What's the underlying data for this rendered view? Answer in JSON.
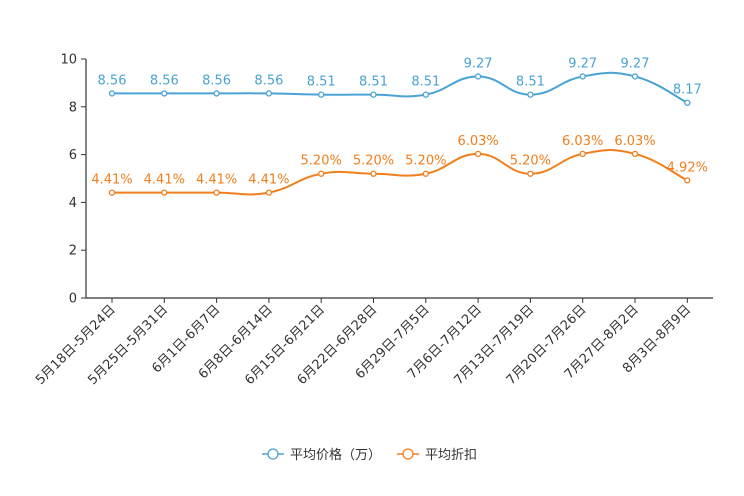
{
  "chart_data": {
    "type": "line",
    "title": "",
    "xlabel": "",
    "ylabel": "",
    "ylim": [
      0,
      10
    ],
    "yticks": [
      0,
      2,
      4,
      6,
      8,
      10
    ],
    "categories": [
      "5月18日-5月24日",
      "5月25日-5月31日",
      "6月1日-6月7日",
      "6月8日-6月14日",
      "6月15日-6月21日",
      "6月22日-6月28日",
      "6月29日-7月5日",
      "7月6日-7月12日",
      "7月13日-7月19日",
      "7月20日-7月26日",
      "7月27日-8月2日",
      "8月3日-8月9日"
    ],
    "series": [
      {
        "name": "平均价格（万）",
        "color": "#4aa3d4",
        "values": [
          8.56,
          8.56,
          8.56,
          8.56,
          8.51,
          8.51,
          8.51,
          9.27,
          8.51,
          9.27,
          9.27,
          8.17
        ],
        "labels": [
          "8.56",
          "8.56",
          "8.56",
          "8.56",
          "8.51",
          "8.51",
          "8.51",
          "9.27",
          "8.51",
          "9.27",
          "9.27",
          "8.17"
        ]
      },
      {
        "name": "平均折扣",
        "color": "#f07f1d",
        "values": [
          4.41,
          4.41,
          4.41,
          4.41,
          5.2,
          5.2,
          5.2,
          6.03,
          5.2,
          6.03,
          6.03,
          4.92
        ],
        "labels": [
          "4.41%",
          "4.41%",
          "4.41%",
          "4.41%",
          "5.20%",
          "5.20%",
          "5.20%",
          "6.03%",
          "5.20%",
          "6.03%",
          "6.03%",
          "4.92%"
        ]
      }
    ],
    "legend_position": "bottom-center"
  }
}
